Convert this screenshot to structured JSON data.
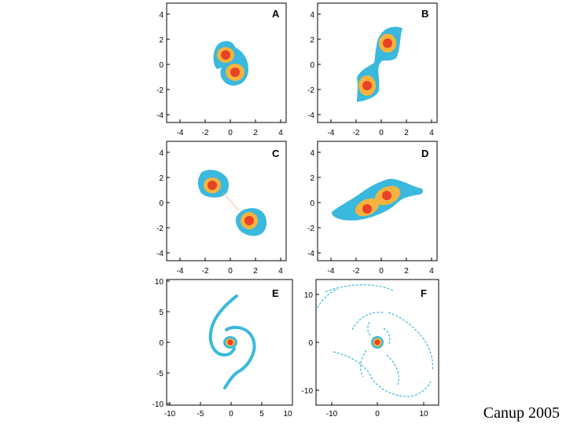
{
  "colors": {
    "outer": "#3bb8dd",
    "mid": "#f6b33d",
    "core": "#ea4226"
  },
  "credit": "Canup 2005",
  "panels": [
    {
      "id": "A",
      "label": "A",
      "xticks": [
        "-4",
        "-2",
        "0",
        "2",
        "4"
      ],
      "yticks": [
        "4",
        "2",
        "0",
        "-2",
        "-4"
      ]
    },
    {
      "id": "B",
      "label": "B",
      "xticks": [
        "-4",
        "-2",
        "0",
        "2",
        "4"
      ],
      "yticks": [
        "4",
        "2",
        "0",
        "-2",
        "-4"
      ]
    },
    {
      "id": "C",
      "label": "C",
      "xticks": [
        "-4",
        "-2",
        "0",
        "2",
        "4"
      ],
      "yticks": [
        "4",
        "2",
        "0",
        "-2",
        "-4"
      ]
    },
    {
      "id": "D",
      "label": "D",
      "xticks": [
        "-4",
        "-2",
        "0",
        "2",
        "4"
      ],
      "yticks": [
        "4",
        "2",
        "0",
        "-2",
        "-4"
      ]
    },
    {
      "id": "E",
      "label": "E",
      "xticks": [
        "-10",
        "-5",
        "0",
        "5",
        "10"
      ],
      "yticks": [
        "10",
        "5",
        "0",
        "-5",
        "-10"
      ]
    },
    {
      "id": "F",
      "label": "F",
      "xticks": [
        "-10",
        "0",
        "10"
      ],
      "yticks": [
        "10",
        "0",
        "-10"
      ]
    }
  ]
}
